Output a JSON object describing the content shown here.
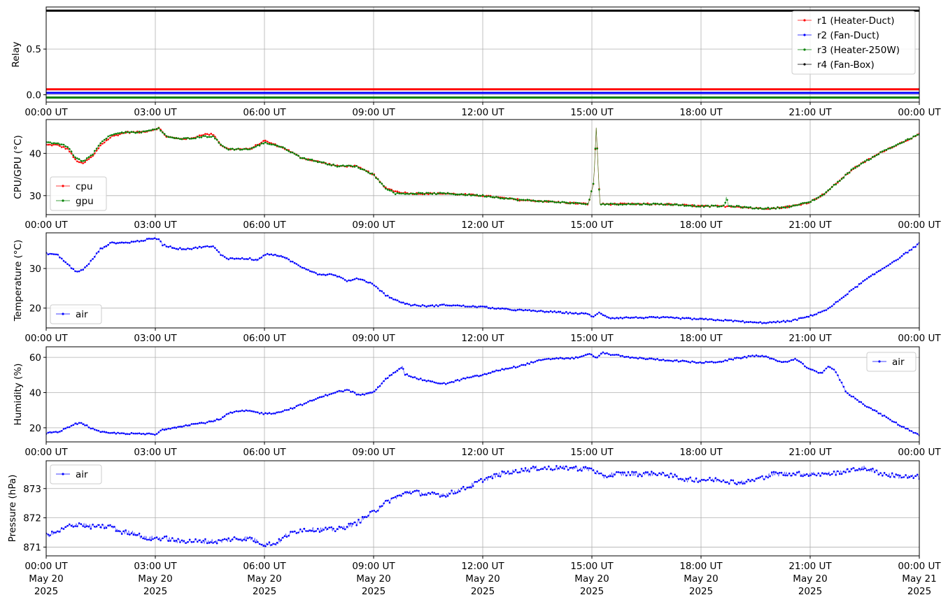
{
  "x_ticks": [
    "00:00 UT",
    "03:00 UT",
    "06:00 UT",
    "09:00 UT",
    "12:00 UT",
    "15:00 UT",
    "18:00 UT",
    "21:00 UT",
    "00:00 UT"
  ],
  "x_date_labels": [
    "May 20",
    "May 20",
    "May 20",
    "May 20",
    "May 20",
    "May 20",
    "May 20",
    "May 20",
    "May 21"
  ],
  "x_year_labels": [
    "2025",
    "2025",
    "2025",
    "2025",
    "2025",
    "2025",
    "2025",
    "2025",
    "2025"
  ],
  "chart_data": [
    {
      "type": "line",
      "ylabel": "Relay",
      "ylim": [
        -0.08,
        0.96
      ],
      "yticks": [
        0.0,
        0.5
      ],
      "ytick_labels": [
        "0.0",
        "0.5"
      ],
      "xlim": [
        0,
        24
      ],
      "x_unit": "hours since 00:00 UT May 20 2025",
      "grid": true,
      "legend_position": "top-right",
      "series": [
        {
          "name": "r1 (Heater-Duct)",
          "color": "#ff0000",
          "x": [
            0,
            24
          ],
          "y": [
            0.06,
            0.06
          ]
        },
        {
          "name": "r2 (Fan-Duct)",
          "color": "#0000ff",
          "x": [
            0,
            24
          ],
          "y": [
            0.02,
            0.02
          ]
        },
        {
          "name": "r3 (Heater-250W)",
          "color": "#008000",
          "x": [
            0,
            24
          ],
          "y": [
            -0.03,
            -0.03
          ]
        },
        {
          "name": "r4 (Fan-Box)",
          "color": "#000000",
          "x": [
            0,
            24
          ],
          "y": [
            0.92,
            0.92
          ]
        }
      ]
    },
    {
      "type": "line",
      "ylabel": "CPU/GPU (°C)",
      "ylim": [
        25.5,
        48
      ],
      "yticks": [
        30,
        40
      ],
      "ytick_labels": [
        "30",
        "40"
      ],
      "xlim": [
        0,
        24
      ],
      "grid": true,
      "legend_position": "bottom-left",
      "series": [
        {
          "name": "cpu",
          "color": "#ff0000",
          "x": [
            0,
            0.3,
            0.6,
            0.8,
            1.0,
            1.3,
            1.5,
            1.8,
            2.2,
            2.6,
            2.9,
            3.1,
            3.3,
            3.6,
            4.0,
            4.3,
            4.6,
            4.8,
            5.0,
            5.3,
            5.6,
            6.0,
            6.3,
            6.6,
            7.0,
            7.5,
            8.0,
            8.5,
            9.0,
            9.3,
            9.6,
            10.0,
            11.0,
            12.0,
            12.5,
            13.0,
            14.0,
            14.9,
            15.05,
            15.12,
            15.22,
            15.5,
            16.0,
            17.0,
            18.0,
            18.5,
            18.9,
            19.5,
            20.0,
            20.5,
            21.0,
            21.4,
            21.8,
            22.2,
            22.6,
            23.0,
            23.5,
            24.0
          ],
          "y": [
            42,
            42,
            41,
            38.5,
            37.5,
            39.5,
            42,
            44,
            45,
            45,
            45.5,
            46,
            44,
            43.5,
            43.5,
            44.5,
            44.5,
            42,
            41,
            41,
            41,
            43,
            42,
            41,
            39,
            38,
            37,
            37,
            35,
            32,
            31,
            30.5,
            30.5,
            30,
            29.5,
            29,
            28.5,
            28,
            33,
            46,
            28,
            28,
            28,
            28,
            27.5,
            27.5,
            27.5,
            27,
            27,
            27.5,
            28.5,
            30.5,
            33.5,
            36.5,
            38.5,
            40.5,
            42.5,
            44.5
          ]
        },
        {
          "name": "gpu",
          "color": "#008000",
          "x": [
            0,
            0.3,
            0.6,
            0.8,
            1.0,
            1.3,
            1.5,
            1.8,
            2.2,
            2.6,
            2.9,
            3.1,
            3.3,
            3.6,
            4.0,
            4.3,
            4.6,
            4.8,
            5.0,
            5.3,
            5.6,
            6.0,
            6.3,
            6.6,
            7.0,
            7.5,
            8.0,
            8.5,
            9.0,
            9.3,
            9.6,
            10.0,
            11.0,
            12.0,
            12.5,
            13.0,
            14.0,
            14.9,
            15.05,
            15.12,
            15.22,
            15.5,
            16.0,
            17.0,
            18.0,
            18.5,
            18.65,
            18.7,
            18.75,
            18.9,
            19.5,
            20.0,
            20.5,
            21.0,
            21.4,
            21.8,
            22.2,
            22.6,
            23.0,
            23.5,
            24.0
          ],
          "y": [
            42.5,
            42.5,
            41.5,
            39,
            38,
            40,
            42.5,
            44.5,
            45,
            45,
            45.5,
            46,
            44,
            43.5,
            43.5,
            44,
            44,
            42,
            41,
            41,
            41,
            42.5,
            42,
            41,
            39,
            38,
            37,
            37,
            35,
            32,
            30.5,
            30.5,
            30.5,
            30,
            29.5,
            29,
            28.5,
            28,
            33,
            46,
            28,
            28,
            28,
            28,
            27.5,
            27.5,
            27.5,
            30,
            27.5,
            27.5,
            27,
            27,
            27.5,
            28.5,
            30.5,
            33.5,
            36.5,
            38.5,
            40.5,
            42.5,
            44.5
          ]
        }
      ]
    },
    {
      "type": "line",
      "ylabel": "Temperature (°C)",
      "ylim": [
        15,
        39
      ],
      "yticks": [
        20,
        30
      ],
      "ytick_labels": [
        "20",
        "30"
      ],
      "xlim": [
        0,
        24
      ],
      "grid": true,
      "legend_position": "bottom-left",
      "series": [
        {
          "name": "air",
          "color": "#0000ff",
          "x": [
            0,
            0.3,
            0.6,
            0.8,
            1.0,
            1.2,
            1.5,
            1.8,
            2.2,
            2.6,
            2.9,
            3.1,
            3.2,
            3.6,
            4.0,
            4.3,
            4.6,
            4.8,
            5.0,
            5.3,
            5.6,
            5.8,
            6.0,
            6.3,
            6.6,
            7.0,
            7.5,
            7.9,
            8.3,
            8.6,
            9.0,
            9.3,
            9.6,
            10.0,
            10.5,
            11.0,
            11.5,
            12.0,
            12.5,
            13.0,
            14.0,
            14.9,
            15.05,
            15.2,
            15.5,
            16.0,
            17.0,
            18.0,
            18.5,
            19.0,
            19.5,
            20.0,
            20.5,
            21.0,
            21.5,
            22.0,
            22.5,
            23.0,
            23.5,
            24.0
          ],
          "y": [
            33.8,
            33.5,
            31,
            29.3,
            29.5,
            31.5,
            35,
            36.5,
            36.5,
            37,
            37.5,
            37.5,
            36,
            35,
            35,
            35.5,
            35.5,
            33.5,
            32.5,
            32.5,
            32.5,
            32,
            33.5,
            33.5,
            32.5,
            30.5,
            28.5,
            28.5,
            26.8,
            27.5,
            26,
            23.5,
            22,
            20.8,
            20.5,
            20.8,
            20.5,
            20.3,
            19.8,
            19.5,
            19,
            18.5,
            17.8,
            18.8,
            17.5,
            17.6,
            17.6,
            17.2,
            17,
            16.7,
            16.3,
            16.4,
            16.8,
            18,
            19.8,
            23.5,
            27,
            30,
            33,
            36.3
          ]
        }
      ]
    },
    {
      "type": "line",
      "ylabel": "Humidity (%)",
      "ylim": [
        12,
        66
      ],
      "yticks": [
        20,
        40,
        60
      ],
      "ytick_labels": [
        "20",
        "40",
        "60"
      ],
      "xlim": [
        0,
        24
      ],
      "grid": true,
      "legend_position": "top-right",
      "series": [
        {
          "name": "air",
          "color": "#0000ff",
          "x": [
            0,
            0.3,
            0.6,
            0.8,
            1.0,
            1.3,
            1.5,
            1.8,
            2.2,
            2.6,
            2.9,
            3.0,
            3.2,
            3.6,
            4.0,
            4.4,
            4.8,
            5.0,
            5.3,
            5.6,
            6.0,
            6.3,
            6.6,
            7.0,
            7.5,
            7.9,
            8.3,
            8.6,
            9.0,
            9.3,
            9.6,
            9.8,
            9.85,
            10.2,
            10.6,
            11.0,
            11.5,
            12.0,
            12.5,
            13.0,
            13.5,
            14.0,
            14.5,
            15.0,
            15.1,
            15.3,
            16.0,
            17.0,
            18.0,
            18.5,
            19.0,
            19.5,
            19.8,
            20.2,
            20.6,
            21.0,
            21.3,
            21.5,
            21.7,
            22.0,
            22.5,
            23.0,
            23.5,
            24.0
          ],
          "y": [
            17,
            17.5,
            20,
            22.5,
            22.5,
            19,
            17.5,
            17,
            16.8,
            16.5,
            16.5,
            16,
            19,
            20.5,
            22,
            23,
            25,
            28,
            29.5,
            29.5,
            28,
            28.5,
            30,
            33,
            37,
            40,
            41.5,
            38.5,
            40,
            47,
            52,
            55,
            50.5,
            48,
            46,
            45,
            48,
            50,
            53,
            55,
            58,
            59.5,
            59.5,
            62,
            59.5,
            62.5,
            60,
            58.5,
            57,
            57.5,
            59.5,
            61,
            60.5,
            57,
            59,
            53,
            51,
            55,
            52,
            40,
            33,
            27,
            21,
            16
          ]
        }
      ]
    },
    {
      "type": "line",
      "ylabel": "Pressure (hPa)",
      "xlabel": "",
      "ylim": [
        870.7,
        873.95
      ],
      "yticks": [
        871,
        872,
        873
      ],
      "ytick_labels": [
        "871",
        "872",
        "873"
      ],
      "xlim": [
        0,
        24
      ],
      "grid": true,
      "legend_position": "top-left",
      "series": [
        {
          "name": "air",
          "color": "#0000ff",
          "x": [
            0,
            0.3,
            0.6,
            0.9,
            1.2,
            1.5,
            1.8,
            2.1,
            2.4,
            2.7,
            3.0,
            3.3,
            3.6,
            4.0,
            4.4,
            4.8,
            5.2,
            5.6,
            6.0,
            6.3,
            6.6,
            7.0,
            7.5,
            8.0,
            8.5,
            9.0,
            9.3,
            9.6,
            10.0,
            10.5,
            11.0,
            11.5,
            12.0,
            12.5,
            13.0,
            13.5,
            14.0,
            14.5,
            15.0,
            15.3,
            15.6,
            16.0,
            17.0,
            17.3,
            17.6,
            18.0,
            18.5,
            19.0,
            19.5,
            20.0,
            20.5,
            21.0,
            21.5,
            22.0,
            22.5,
            23.0,
            23.5,
            24.0
          ],
          "y": [
            871.4,
            871.5,
            871.7,
            871.8,
            871.7,
            871.7,
            871.7,
            871.5,
            871.5,
            871.3,
            871.3,
            871.3,
            871.2,
            871.2,
            871.2,
            871.2,
            871.3,
            871.3,
            871.1,
            871.1,
            871.4,
            871.6,
            871.6,
            871.6,
            871.8,
            872.2,
            872.5,
            872.7,
            872.9,
            872.8,
            872.8,
            873.0,
            873.3,
            873.5,
            873.6,
            873.7,
            873.7,
            873.7,
            873.65,
            873.4,
            873.5,
            873.5,
            873.5,
            873.4,
            873.3,
            873.3,
            873.3,
            873.2,
            873.3,
            873.5,
            873.5,
            873.5,
            873.5,
            873.6,
            873.7,
            873.5,
            873.4,
            873.4
          ]
        }
      ]
    }
  ]
}
